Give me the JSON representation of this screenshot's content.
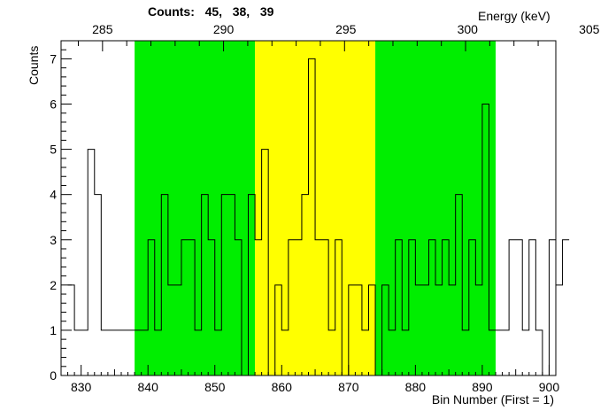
{
  "title": {
    "label": "Counts:",
    "values": [
      "45,",
      "38,",
      "39"
    ]
  },
  "chart_data": {
    "type": "histogram",
    "xlabel": "Bin Number (First = 1)",
    "ylabel": "Counts",
    "top_axis_label": "Energy (keV)",
    "xlim": [
      827,
      901
    ],
    "ylim": [
      0,
      7.4
    ],
    "x_ticks": [
      830,
      840,
      850,
      860,
      870,
      880,
      890,
      900
    ],
    "y_ticks": [
      0,
      1,
      2,
      3,
      4,
      5,
      6,
      7
    ],
    "energy_ticks": [
      {
        "bin": 833.2,
        "label": "285"
      },
      {
        "bin": 851.3,
        "label": "290"
      },
      {
        "bin": 869.6,
        "label": "295"
      },
      {
        "bin": 887.8,
        "label": "300"
      },
      {
        "bin": 906.0,
        "label": "305"
      }
    ],
    "regions": [
      {
        "name": "left-background",
        "start": 838,
        "end": 856,
        "color": "#00ee00"
      },
      {
        "name": "peak",
        "start": 856,
        "end": 874,
        "color": "#ffff00"
      },
      {
        "name": "right-background",
        "start": 874,
        "end": 892,
        "color": "#00ee00"
      }
    ],
    "bins_start": 828,
    "counts": [
      2,
      1,
      1,
      5,
      4,
      1,
      1,
      1,
      1,
      1,
      1,
      1,
      3,
      1,
      4,
      2,
      2,
      3,
      3,
      1,
      4,
      3,
      1,
      4,
      4,
      3,
      0,
      4,
      3,
      5,
      0,
      2,
      1,
      3,
      3,
      4,
      7,
      3,
      3,
      1,
      3,
      0,
      2,
      2,
      1,
      2,
      0,
      2,
      1,
      3,
      1,
      3,
      2,
      2,
      3,
      2,
      3,
      2,
      4,
      1,
      3,
      2,
      6,
      1,
      1,
      1,
      3,
      3,
      1,
      3,
      1,
      0,
      3,
      2,
      3
    ]
  },
  "colors": {
    "green": "#00ee00",
    "yellow": "#ffff00",
    "line": "#000000"
  }
}
